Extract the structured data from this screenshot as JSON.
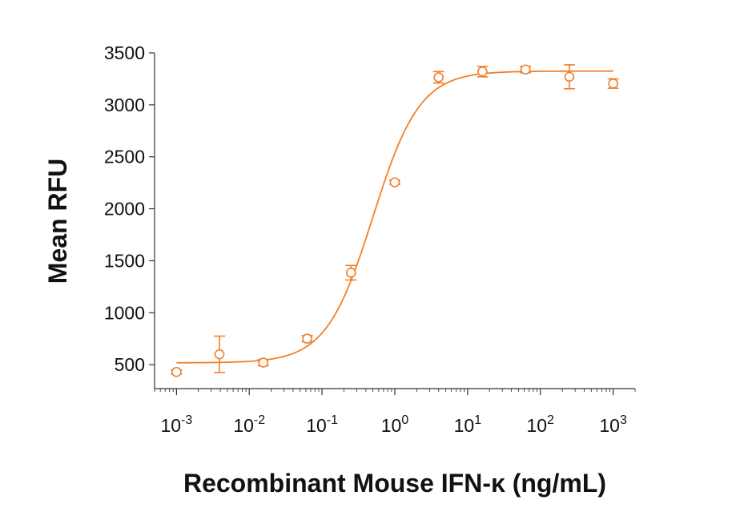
{
  "chart_data": {
    "type": "scatter",
    "title": "",
    "xlabel": "Recombinant Mouse IFN-κ (ng/mL)",
    "ylabel": "Mean RFU",
    "xscale": "log10",
    "xlim": [
      0.0005,
      2000
    ],
    "ylim": [
      270,
      3500
    ],
    "x_ticks": [
      {
        "value": 0.001,
        "base": "10",
        "exp": "-3"
      },
      {
        "value": 0.01,
        "base": "10",
        "exp": "-2"
      },
      {
        "value": 0.1,
        "base": "10",
        "exp": "-1"
      },
      {
        "value": 1,
        "base": "10",
        "exp": "0"
      },
      {
        "value": 10,
        "base": "10",
        "exp": "1"
      },
      {
        "value": 100,
        "base": "10",
        "exp": "2"
      },
      {
        "value": 1000,
        "base": "10",
        "exp": "3"
      }
    ],
    "y_ticks": [
      500,
      1000,
      1500,
      2000,
      2500,
      3000,
      3500
    ],
    "grid": false,
    "legend": "none",
    "color": "#f0802a",
    "points": [
      {
        "x": 0.001,
        "y": 430,
        "err": 20
      },
      {
        "x": 0.0039,
        "y": 600,
        "err": 175
      },
      {
        "x": 0.0156,
        "y": 520,
        "err": 30
      },
      {
        "x": 0.0625,
        "y": 750,
        "err": 30
      },
      {
        "x": 0.25,
        "y": 1385,
        "err": 70
      },
      {
        "x": 1,
        "y": 2255,
        "err": 20
      },
      {
        "x": 4,
        "y": 3265,
        "err": 55
      },
      {
        "x": 16,
        "y": 3320,
        "err": 50
      },
      {
        "x": 62.5,
        "y": 3340,
        "err": 30
      },
      {
        "x": 250,
        "y": 3270,
        "err": 115
      },
      {
        "x": 1000,
        "y": 3205,
        "err": 45
      }
    ],
    "fit": {
      "model": "4PL",
      "bottom": 518,
      "top": 3325,
      "ec50": 0.5,
      "hill": 1.35
    }
  }
}
